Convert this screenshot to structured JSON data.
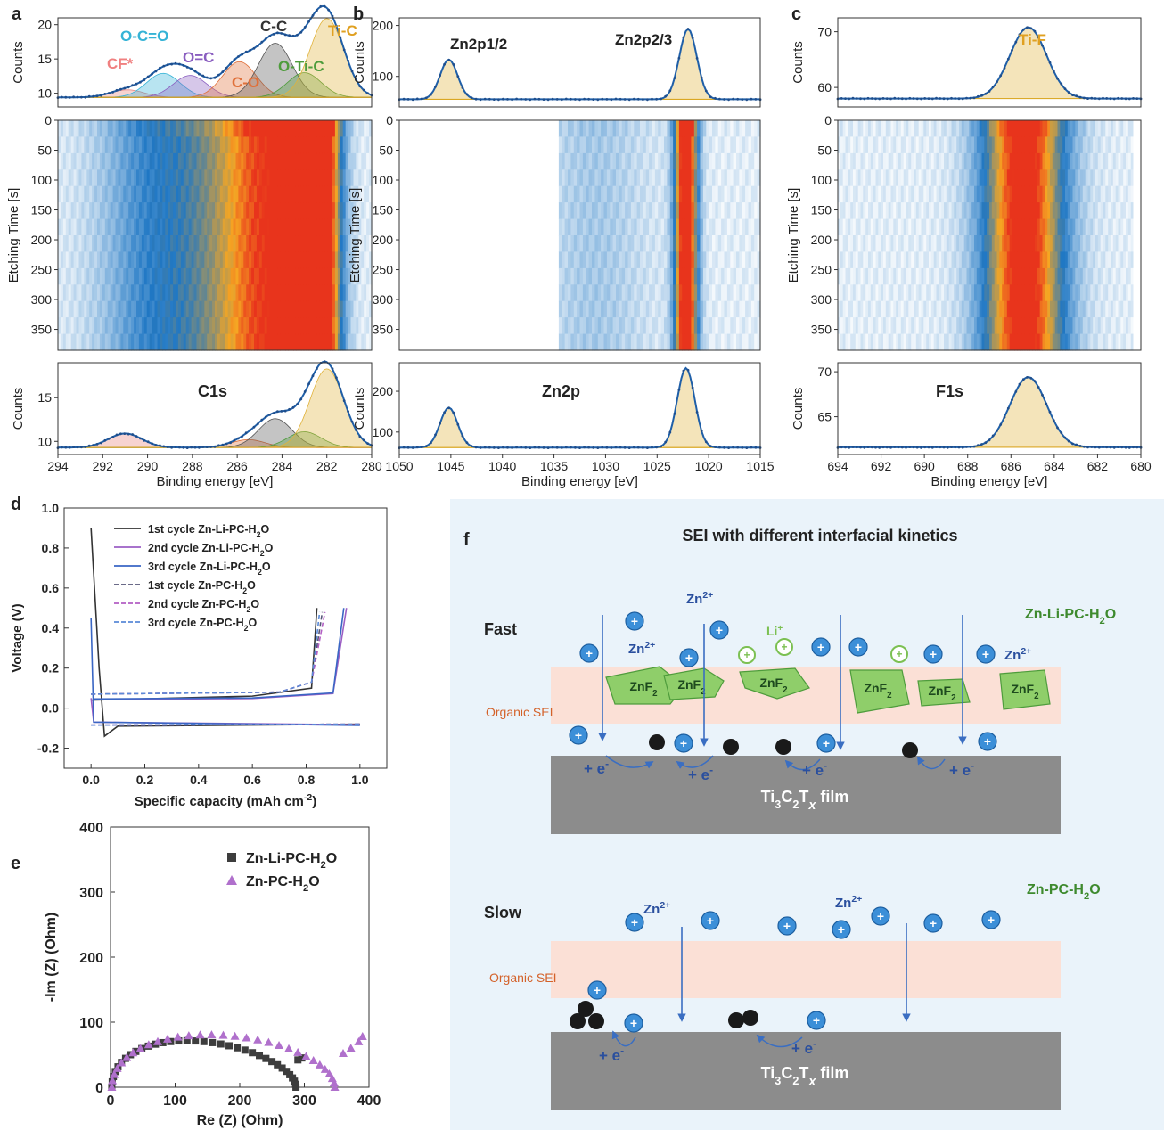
{
  "panel_labels": {
    "a": "a",
    "b": "b",
    "c": "c",
    "d": "d",
    "e": "e",
    "f": "f"
  },
  "common": {
    "counts_label": "Counts",
    "etching_label": "Etching Time [s]",
    "binding_label": "Binding energy [eV]",
    "etch_ticks": [
      "0",
      "50",
      "100",
      "150",
      "200",
      "250",
      "300",
      "350"
    ]
  },
  "colors": {
    "fit_line": "#1f5fa8",
    "dot": "#1f4e8c",
    "background_fill": "#f2d88a",
    "heat_low": "#ffffff",
    "heat_mid": "#1f77c4",
    "heat_high": "#f5a623",
    "heat_peak": "#e8341c",
    "sei_band": "#fbe0d6",
    "film": "#8c8c8c",
    "ion": "#3c8fd8",
    "li_ion": "#7cc052",
    "znf2": "#8fce6a",
    "arrow": "#3a6ec2",
    "text_blue": "#2a4f9e",
    "text_green": "#3e8a2e",
    "text_orange": "#d4622a",
    "panel_f_bg": "#eaf3fa"
  },
  "chart_data": [
    {
      "id": "a",
      "type": "line",
      "x_ticks": [
        "294",
        "292",
        "290",
        "288",
        "286",
        "284",
        "282",
        "280"
      ],
      "xlim": [
        294,
        280
      ],
      "top": {
        "ylim": [
          8,
          21
        ],
        "y_ticks": [
          "10",
          "15",
          "20"
        ],
        "peaks": [
          {
            "label": "CF*",
            "center": 290.9,
            "height": 1.1,
            "color": "#e8807a"
          },
          {
            "label": "O-C=O",
            "center": 289.3,
            "height": 3.5,
            "color": "#35b3d6"
          },
          {
            "label": "O=C",
            "center": 288.1,
            "height": 3.2,
            "color": "#8a5ec0"
          },
          {
            "label": "C-O",
            "center": 285.9,
            "height": 5.2,
            "color": "#e0703a"
          },
          {
            "label": "C-C",
            "center": 284.3,
            "height": 7.9,
            "color": "#555555"
          },
          {
            "label": "O-Ti-C",
            "center": 283.0,
            "height": 3.6,
            "color": "#4e9c3c"
          },
          {
            "label": "Ti-C",
            "center": 282.0,
            "height": 11.5,
            "color": "#e0b23a"
          }
        ],
        "baseline": 9.4
      },
      "bottom": {
        "label": "C1s",
        "ylim": [
          8.5,
          19
        ],
        "y_ticks": [
          "10",
          "15"
        ],
        "peaks": [
          {
            "center": 291.0,
            "height": 1.6,
            "color": "#e8807a"
          },
          {
            "center": 285.5,
            "height": 0.9,
            "color": "#e0703a"
          },
          {
            "center": 284.3,
            "height": 3.3,
            "color": "#555555"
          },
          {
            "center": 283.0,
            "height": 1.8,
            "color": "#4e9c3c"
          },
          {
            "center": 282.0,
            "height": 9.0,
            "color": "#e0b23a"
          }
        ],
        "baseline": 9.3
      },
      "heatmap_bands": [
        {
          "center": 289.5,
          "width": 1.8,
          "intensity": 0.35
        },
        {
          "center": 286.3,
          "width": 1.4,
          "intensity": 0.45
        },
        {
          "center": 284.4,
          "width": 1.2,
          "intensity": 0.7
        },
        {
          "center": 283.2,
          "width": 0.6,
          "intensity": 0.85
        },
        {
          "center": 282.1,
          "width": 0.55,
          "intensity": 1.0
        }
      ]
    },
    {
      "id": "b",
      "type": "line",
      "x_ticks": [
        "1050",
        "1045",
        "1040",
        "1035",
        "1030",
        "1025",
        "1020",
        "1015"
      ],
      "xlim": [
        1050,
        1015
      ],
      "top": {
        "ylim": [
          40,
          215
        ],
        "y_ticks": [
          "100",
          "200"
        ],
        "peaks": [
          {
            "label": "Zn2p1/2",
            "center": 1045.2,
            "height": 78,
            "color": "#e0b23a"
          },
          {
            "label": "Zn2p2/3",
            "center": 1022.0,
            "height": 138,
            "color": "#e0b23a"
          }
        ],
        "baseline": 55
      },
      "bottom": {
        "label": "Zn2p",
        "ylim": [
          45,
          270
        ],
        "y_ticks": [
          "100",
          "200"
        ],
        "peaks": [
          {
            "center": 1045.2,
            "height": 98,
            "color": "#e0b23a"
          },
          {
            "center": 1022.2,
            "height": 195,
            "color": "#e0b23a"
          }
        ],
        "baseline": 62
      },
      "heatmap_start": 1034.5,
      "heatmap_bands": [
        {
          "center": 1031.0,
          "width": 3.5,
          "intensity": 0.12
        },
        {
          "center": 1022.2,
          "width": 0.75,
          "intensity": 1.2
        }
      ]
    },
    {
      "id": "c",
      "type": "line",
      "x_ticks": [
        "694",
        "692",
        "690",
        "688",
        "686",
        "684",
        "682",
        "680"
      ],
      "xlim": [
        694,
        680
      ],
      "top": {
        "ylim": [
          56.5,
          72.5
        ],
        "y_ticks": [
          "60",
          "70"
        ],
        "peaks": [
          {
            "label": "Ti-F",
            "center": 685.2,
            "height": 12.8,
            "color": "#e0b23a"
          }
        ],
        "baseline": 58.0
      },
      "bottom": {
        "label": "F1s",
        "ylim": [
          60.8,
          71
        ],
        "y_ticks": [
          "65",
          "70"
        ],
        "peaks": [
          {
            "center": 685.2,
            "height": 7.8,
            "color": "#e0b23a"
          }
        ],
        "baseline": 61.6
      },
      "heatmap_end": 680.4,
      "heatmap_bands": [
        {
          "center": 685.4,
          "width": 1.3,
          "intensity": 1.05
        }
      ]
    },
    {
      "id": "d",
      "type": "line",
      "xlabel": "Specific capacity (mAh cm",
      "xlabel_sup": "-2",
      "xlabel_end": ")",
      "ylabel": "Voltage (V)",
      "xlim": [
        -0.1,
        1.1
      ],
      "ylim": [
        -0.3,
        1.0
      ],
      "x_ticks": [
        "0.0",
        "0.2",
        "0.4",
        "0.6",
        "0.8",
        "1.0"
      ],
      "y_ticks": [
        "-0.2",
        "0.0",
        "0.2",
        "0.4",
        "0.6",
        "0.8",
        "1.0"
      ],
      "series": [
        {
          "name": "1st cycle Zn-Li-PC-H",
          "sub": "2",
          "tail": "O",
          "color": "#333333",
          "dash": false,
          "plate_end": 0.05,
          "strip_end": 0.94,
          "start_v": 0.9
        },
        {
          "name": "2nd cycle Zn-Li-PC-H",
          "sub": "2",
          "tail": "O",
          "color": "#9c5fc4",
          "dash": false,
          "plate_end": 0.95,
          "strip_end": 0.95,
          "start_v": 0.05
        },
        {
          "name": "3rd cycle Zn-Li-PC-H",
          "sub": "2",
          "tail": "O",
          "color": "#3a66c4",
          "dash": false,
          "plate_end": 0.94,
          "strip_end": 0.94,
          "start_v": 0.45
        },
        {
          "name": "1st cycle Zn-PC-H",
          "sub": "2",
          "tail": "O",
          "color": "#555577",
          "dash": true,
          "strip_end": 0.86
        },
        {
          "name": "2nd cycle Zn-PC-H",
          "sub": "2",
          "tail": "O",
          "color": "#b35fc4",
          "dash": true,
          "strip_end": 0.87
        },
        {
          "name": "3rd cycle Zn-PC-H",
          "sub": "2",
          "tail": "O",
          "color": "#5a8ad8",
          "dash": true,
          "strip_end": 0.85
        }
      ]
    },
    {
      "id": "e",
      "type": "scatter",
      "xlabel": "Re (Z) (Ohm)",
      "ylabel": "-Im (Z) (Ohm)",
      "xlim": [
        0,
        400
      ],
      "ylim": [
        0,
        400
      ],
      "x_ticks": [
        "0",
        "100",
        "200",
        "300",
        "400"
      ],
      "y_ticks": [
        "0",
        "100",
        "200",
        "300",
        "400"
      ],
      "series": [
        {
          "name": "Zn-Li-PC-H",
          "sub": "2",
          "tail": "O",
          "color": "#3d3d3d",
          "marker": "square",
          "semicircle_end": 285,
          "radius": 145,
          "tail_points": [
            [
              290,
              42
            ],
            [
              296,
              45
            ]
          ]
        },
        {
          "name": "Zn-PC-H",
          "sub": "2",
          "tail": "O",
          "color": "#b070cc",
          "marker": "triangle",
          "semicircle_end": 345,
          "radius": 172,
          "tail_points": [
            [
              360,
              52
            ],
            [
              372,
              60
            ],
            [
              384,
              70
            ],
            [
              390,
              78
            ]
          ]
        }
      ]
    }
  ],
  "schematic": {
    "title": "SEI with different interfacial kinetics",
    "fast_label": "Fast",
    "slow_label": "Slow",
    "electrolyte_fast": "Zn-Li-PC-H",
    "electrolyte_slow": "Zn-PC-H",
    "electrolyte_sub": "2",
    "electrolyte_tail": "O",
    "sei_label": "Organic SEI",
    "zn_ion": "Zn",
    "zn_charge": "2+",
    "li_ion": "Li",
    "li_charge": "+",
    "electron": "+ e",
    "electron_sup": "-",
    "znf2": "ZnF",
    "znf2_sub": "2",
    "film_a": "Ti",
    "film_sub1": "3",
    "film_b": "C",
    "film_sub2": "2",
    "film_c": "T",
    "film_subx": "x",
    "film_d": " film",
    "plus": "+"
  }
}
